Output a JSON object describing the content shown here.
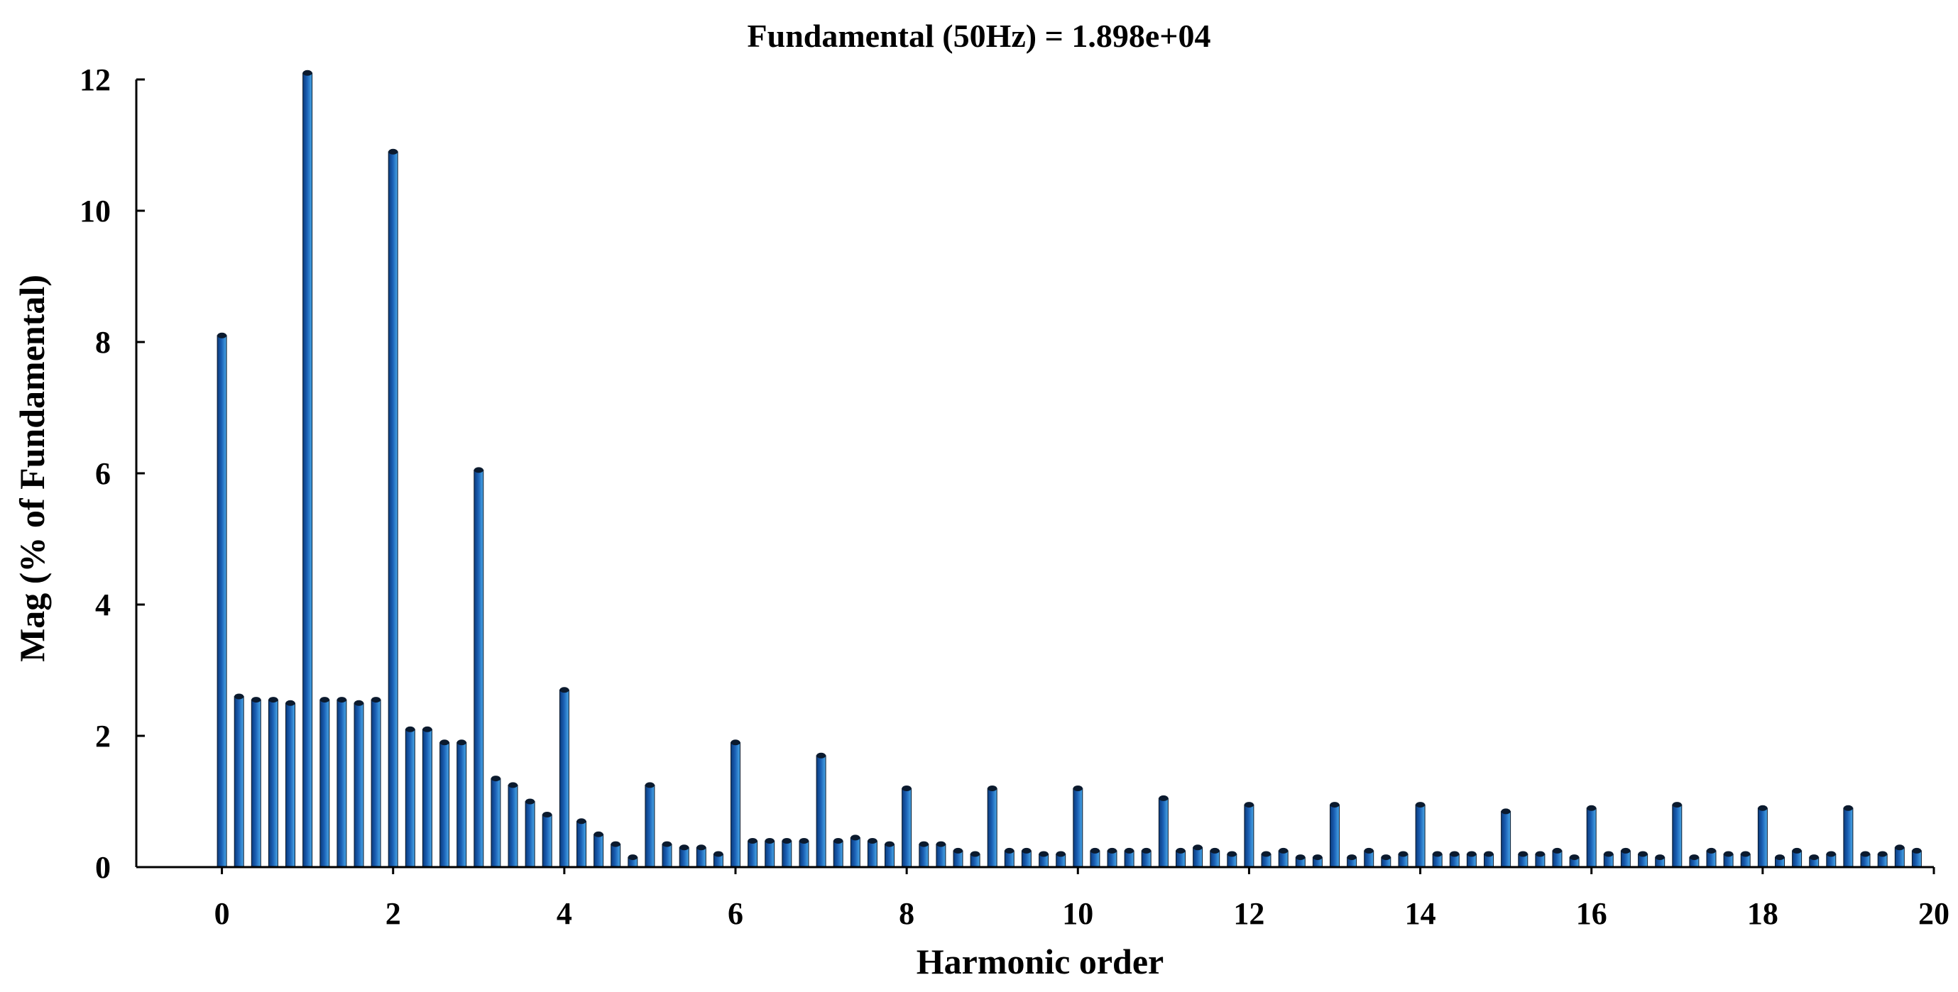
{
  "chart_data": {
    "type": "bar",
    "title": "Fundamental (50Hz) = 1.898e+04",
    "xlabel": "Harmonic order",
    "ylabel": "Mag (% of Fundamental)",
    "xlim": [
      -1,
      20
    ],
    "ylim": [
      0,
      12
    ],
    "xticks": [
      0,
      2,
      4,
      6,
      8,
      10,
      12,
      14,
      16,
      18,
      20
    ],
    "yticks": [
      0,
      2,
      4,
      6,
      8,
      10,
      12
    ],
    "grid": false,
    "legend": "none",
    "bar_color": "#1a5fb4",
    "bar_highlight_color": "#4aa8e8",
    "bar_edge_color": "#0b1a2e",
    "x": [
      0,
      0.2,
      0.4,
      0.6,
      0.8,
      1,
      1.2,
      1.4,
      1.6,
      1.8,
      2,
      2.2,
      2.4,
      2.6,
      2.8,
      3,
      3.2,
      3.4,
      3.6,
      3.8,
      4,
      4.2,
      4.4,
      4.6,
      4.8,
      5,
      5.2,
      5.4,
      5.6,
      5.8,
      6,
      6.2,
      6.4,
      6.6,
      6.8,
      7,
      7.2,
      7.4,
      7.6,
      7.8,
      8,
      8.2,
      8.4,
      8.6,
      8.8,
      9,
      9.2,
      9.4,
      9.6,
      9.8,
      10,
      10.2,
      10.4,
      10.6,
      10.8,
      11,
      11.2,
      11.4,
      11.6,
      11.8,
      12,
      12.2,
      12.4,
      12.6,
      12.8,
      13,
      13.2,
      13.4,
      13.6,
      13.8,
      14,
      14.2,
      14.4,
      14.6,
      14.8,
      15,
      15.2,
      15.4,
      15.6,
      15.8,
      16,
      16.2,
      16.4,
      16.6,
      16.8,
      17,
      17.2,
      17.4,
      17.6,
      17.8,
      18,
      18.2,
      18.4,
      18.6,
      18.8,
      19,
      19.2,
      19.4,
      19.6,
      19.8
    ],
    "values": [
      8.1,
      2.6,
      2.55,
      2.55,
      2.5,
      12.1,
      2.55,
      2.55,
      2.5,
      2.55,
      10.9,
      2.1,
      2.1,
      1.9,
      1.9,
      6.05,
      1.35,
      1.25,
      1.0,
      0.8,
      2.7,
      0.7,
      0.5,
      0.35,
      0.15,
      1.25,
      0.35,
      0.3,
      0.3,
      0.2,
      1.9,
      0.4,
      0.4,
      0.4,
      0.4,
      1.7,
      0.4,
      0.45,
      0.4,
      0.35,
      1.2,
      0.35,
      0.35,
      0.25,
      0.2,
      1.2,
      0.25,
      0.25,
      0.2,
      0.2,
      1.2,
      0.25,
      0.25,
      0.25,
      0.25,
      1.05,
      0.25,
      0.3,
      0.25,
      0.2,
      0.95,
      0.2,
      0.25,
      0.15,
      0.15,
      0.95,
      0.15,
      0.25,
      0.15,
      0.2,
      0.95,
      0.2,
      0.2,
      0.2,
      0.2,
      0.85,
      0.2,
      0.2,
      0.25,
      0.15,
      0.9,
      0.2,
      0.25,
      0.2,
      0.15,
      0.95,
      0.15,
      0.25,
      0.2,
      0.2,
      0.9,
      0.15,
      0.25,
      0.15,
      0.2,
      0.9,
      0.2,
      0.2,
      0.3,
      0.25
    ]
  }
}
